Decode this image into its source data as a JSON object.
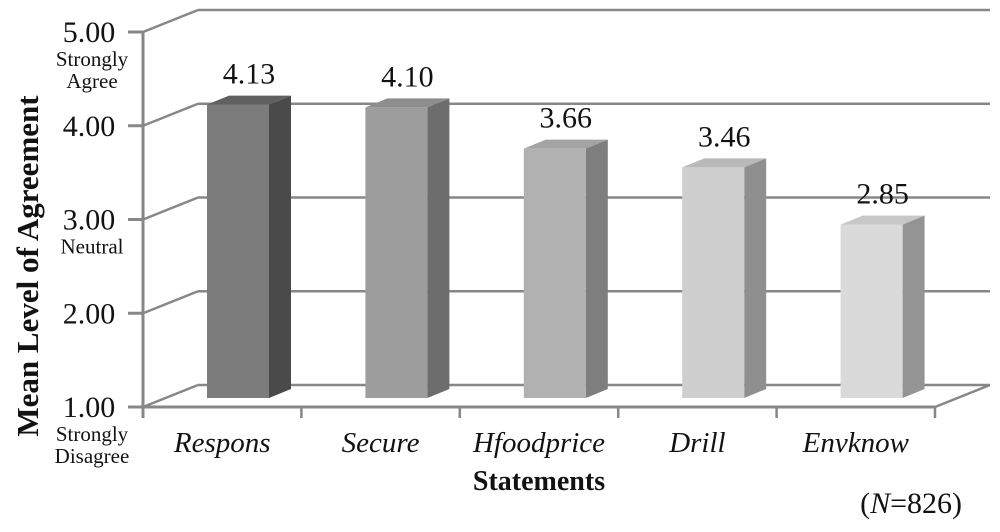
{
  "chart_data": {
    "type": "bar",
    "style": "3d",
    "title": "",
    "xlabel": "Statements",
    "ylabel": "Mean Level of Agreement",
    "categories": [
      "Respons",
      "Secure",
      "Hfoodprice",
      "Drill",
      "Envknow"
    ],
    "values": [
      4.13,
      4.1,
      3.66,
      3.46,
      2.85
    ],
    "value_labels": [
      "4.13",
      "4.10",
      "3.66",
      "3.46",
      "2.85"
    ],
    "ylim": [
      1.0,
      5.0
    ],
    "ytick_step": 1.0,
    "grid": true,
    "legend": false,
    "yticks": [
      {
        "label": "5.00",
        "sub": [
          "Strongly",
          "Agree"
        ]
      },
      {
        "label": "4.00",
        "sub": []
      },
      {
        "label": "3.00",
        "sub": [
          "Neutral"
        ]
      },
      {
        "label": "2.00",
        "sub": []
      },
      {
        "label": "1.00",
        "sub": [
          "Strongly",
          "Disagree"
        ]
      }
    ],
    "note": {
      "open": "(",
      "n": "N",
      "rest": "=826)"
    },
    "axis_color": "#878787",
    "text_color": "#121212",
    "bar_colors": [
      {
        "front": "#7c7c7c",
        "side": "#4a4a4a",
        "top": "#606060"
      },
      {
        "front": "#9d9d9d",
        "side": "#6d6d6d",
        "top": "#8e8e8e"
      },
      {
        "front": "#b1b1b1",
        "side": "#7e7e7e",
        "top": "#a3a3a3"
      },
      {
        "front": "#cfcfcf",
        "side": "#8f8f8f",
        "top": "#b9b9b9"
      },
      {
        "front": "#dadada",
        "side": "#949494",
        "top": "#c7c7c7"
      }
    ]
  }
}
